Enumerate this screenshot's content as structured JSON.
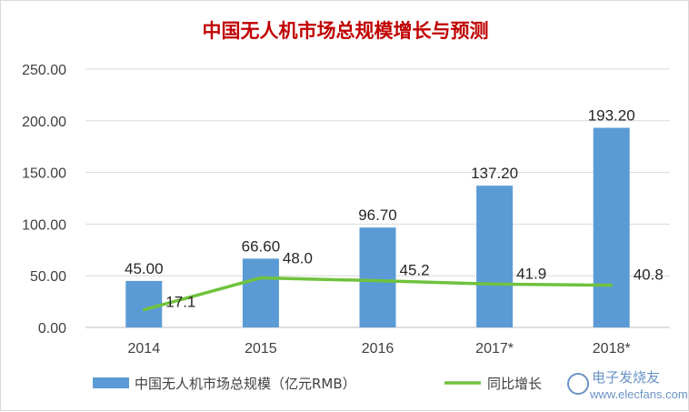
{
  "chart_data": {
    "type": "bar",
    "title": "中国无人机市场总规模增长与预测",
    "categories": [
      "2014",
      "2015",
      "2016",
      "2017*",
      "2018*"
    ],
    "series": [
      {
        "name": "中国无人机市场总规模（亿元RMB）",
        "type": "bar",
        "values": [
          45.0,
          66.6,
          96.7,
          137.2,
          193.2
        ],
        "labels": [
          "45.00",
          "66.60",
          "96.70",
          "137.20",
          "193.20"
        ],
        "color": "#5b9bd5"
      },
      {
        "name": "同比增长",
        "type": "line",
        "values": [
          17.1,
          48.0,
          45.2,
          41.9,
          40.8
        ],
        "labels": [
          "17.1",
          "48.0",
          "45.2",
          "41.9",
          "40.8"
        ],
        "color": "#70c23e"
      }
    ],
    "ylim": [
      0,
      250
    ],
    "yticks": [
      "0.00",
      "50.00",
      "100.00",
      "150.00",
      "200.00",
      "250.00"
    ],
    "grid": true,
    "legend": "bottom"
  },
  "watermark": {
    "text": "电子发烧友",
    "url": "www.elecfans.com"
  }
}
